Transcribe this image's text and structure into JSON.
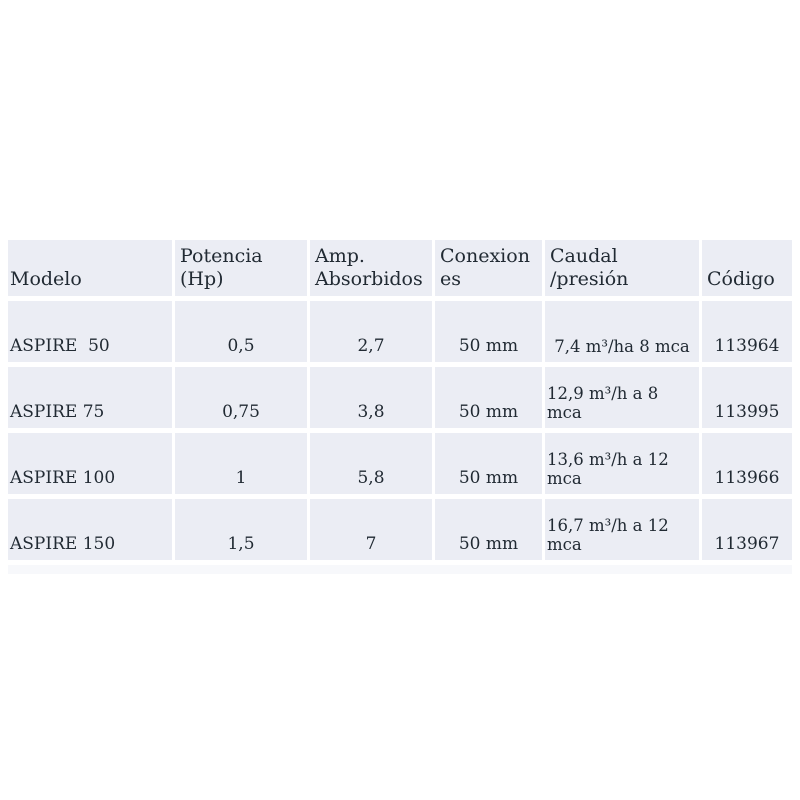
{
  "colors": {
    "cell_bg": "#ebedf4",
    "footer_strip_bg": "#f7f8fb",
    "text": "#212a33",
    "gap": "#ffffff",
    "page_bg": "#ffffff"
  },
  "table": {
    "columns": [
      {
        "label": "Modelo"
      },
      {
        "label": "Potencia (Hp)"
      },
      {
        "label": "Amp. Absorbidos"
      },
      {
        "label": "Conexiones"
      },
      {
        "label": "Caudal /presión"
      },
      {
        "label": "Código"
      }
    ],
    "rows": [
      {
        "modelo": "ASPIRE  50",
        "potencia": "0,5",
        "amp": "2,7",
        "conexiones": "50 mm",
        "caudal": "7,4 m³/ha 8 mca",
        "codigo": "113964"
      },
      {
        "modelo": "ASPIRE 75",
        "potencia": "0,75",
        "amp": "3,8",
        "conexiones": "50 mm",
        "caudal": "12,9 m³/h a 8 mca",
        "codigo": "113995"
      },
      {
        "modelo": "ASPIRE 100",
        "potencia": "1",
        "amp": "5,8",
        "conexiones": "50 mm",
        "caudal": "13,6 m³/h a 12 mca",
        "codigo": "113966"
      },
      {
        "modelo": "ASPIRE 150",
        "potencia": "1,5",
        "amp": "7",
        "conexiones": "50 mm",
        "caudal": "16,7 m³/h a 12 mca",
        "codigo": "113967"
      }
    ]
  }
}
